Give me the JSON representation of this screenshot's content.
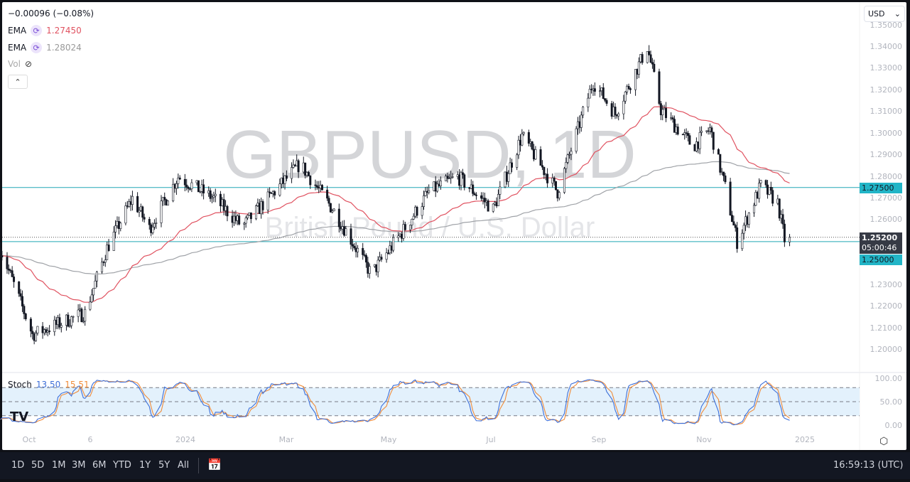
{
  "legend": {
    "change": "−0.00096 (−0.08%)",
    "ema1_label": "EMA",
    "ema1_value": "1.27450",
    "ema2_label": "EMA",
    "ema2_value": "1.28024",
    "vol_label": "Vol",
    "ema1_color": "#e05260",
    "ema2_color": "#a0a3a8"
  },
  "currency": "USD",
  "watermark": {
    "symbol": "GBPUSD, 1D",
    "name": "British Pound / U.S. Dollar"
  },
  "price_axis": [
    "1.35000",
    "1.34000",
    "1.33000",
    "1.32000",
    "1.31000",
    "1.30000",
    "1.29000",
    "1.28000",
    "1.27000",
    "1.26000",
    "1.23000",
    "1.22000",
    "1.21000",
    "1.20000"
  ],
  "price_tags": {
    "upper_line": "1.27500",
    "last_price": "1.25200",
    "countdown": "05:00:46",
    "lower_line": "1.25000"
  },
  "stoch": {
    "label": "Stoch",
    "k": "13.50",
    "d": "15.51",
    "k_color": "#3d6fd8",
    "d_color": "#f08c3a",
    "axis": [
      "100.00",
      "50.00",
      "0.00"
    ]
  },
  "time_axis": [
    "Oct",
    "6",
    "2024",
    "Mar",
    "May",
    "Jul",
    "Sep",
    "Nov",
    "2025"
  ],
  "toolbar": {
    "ranges": [
      "1D",
      "5D",
      "1M",
      "3M",
      "6M",
      "YTD",
      "1Y",
      "5Y",
      "All"
    ],
    "clock": "16:59:13 (UTC)"
  },
  "chart_data": {
    "type": "candlestick",
    "symbol": "GBPUSD",
    "interval": "1D",
    "ylim": [
      1.195,
      1.355
    ],
    "horizontal_lines": [
      1.275,
      1.25
    ],
    "last_price": 1.252,
    "colors": {
      "line": "#22a7b5",
      "up": "#ffffff",
      "down": "#131722"
    },
    "price_path": [
      [
        "2023-09-14",
        1.247
      ],
      [
        "2023-10-03",
        1.207
      ],
      [
        "2023-11-03",
        1.217
      ],
      [
        "2023-11-16",
        1.247
      ],
      [
        "2023-12-01",
        1.27
      ],
      [
        "2023-12-11",
        1.256
      ],
      [
        "2023-12-28",
        1.28
      ],
      [
        "2024-01-18",
        1.27
      ],
      [
        "2024-02-04",
        1.257
      ],
      [
        "2024-03-09",
        1.286
      ],
      [
        "2024-03-30",
        1.263
      ],
      [
        "2024-04-20",
        1.235
      ],
      [
        "2024-05-07",
        1.253
      ],
      [
        "2024-05-24",
        1.273
      ],
      [
        "2024-06-10",
        1.28
      ],
      [
        "2024-07-01",
        1.265
      ],
      [
        "2024-07-18",
        1.299
      ],
      [
        "2024-08-08",
        1.273
      ],
      [
        "2024-08-29",
        1.324
      ],
      [
        "2024-09-11",
        1.309
      ],
      [
        "2024-09-30",
        1.34
      ],
      [
        "2024-10-08",
        1.311
      ],
      [
        "2024-10-27",
        1.294
      ],
      [
        "2024-11-06",
        1.302
      ],
      [
        "2024-11-15",
        1.275
      ],
      [
        "2024-11-22",
        1.25
      ],
      [
        "2024-12-06",
        1.276
      ],
      [
        "2024-12-16",
        1.268
      ],
      [
        "2024-12-20",
        1.251
      ],
      [
        "2024-12-23",
        1.252
      ]
    ],
    "stoch_levels": [
      80,
      50,
      20
    ],
    "stoch_ylim": [
      0,
      100
    ]
  }
}
